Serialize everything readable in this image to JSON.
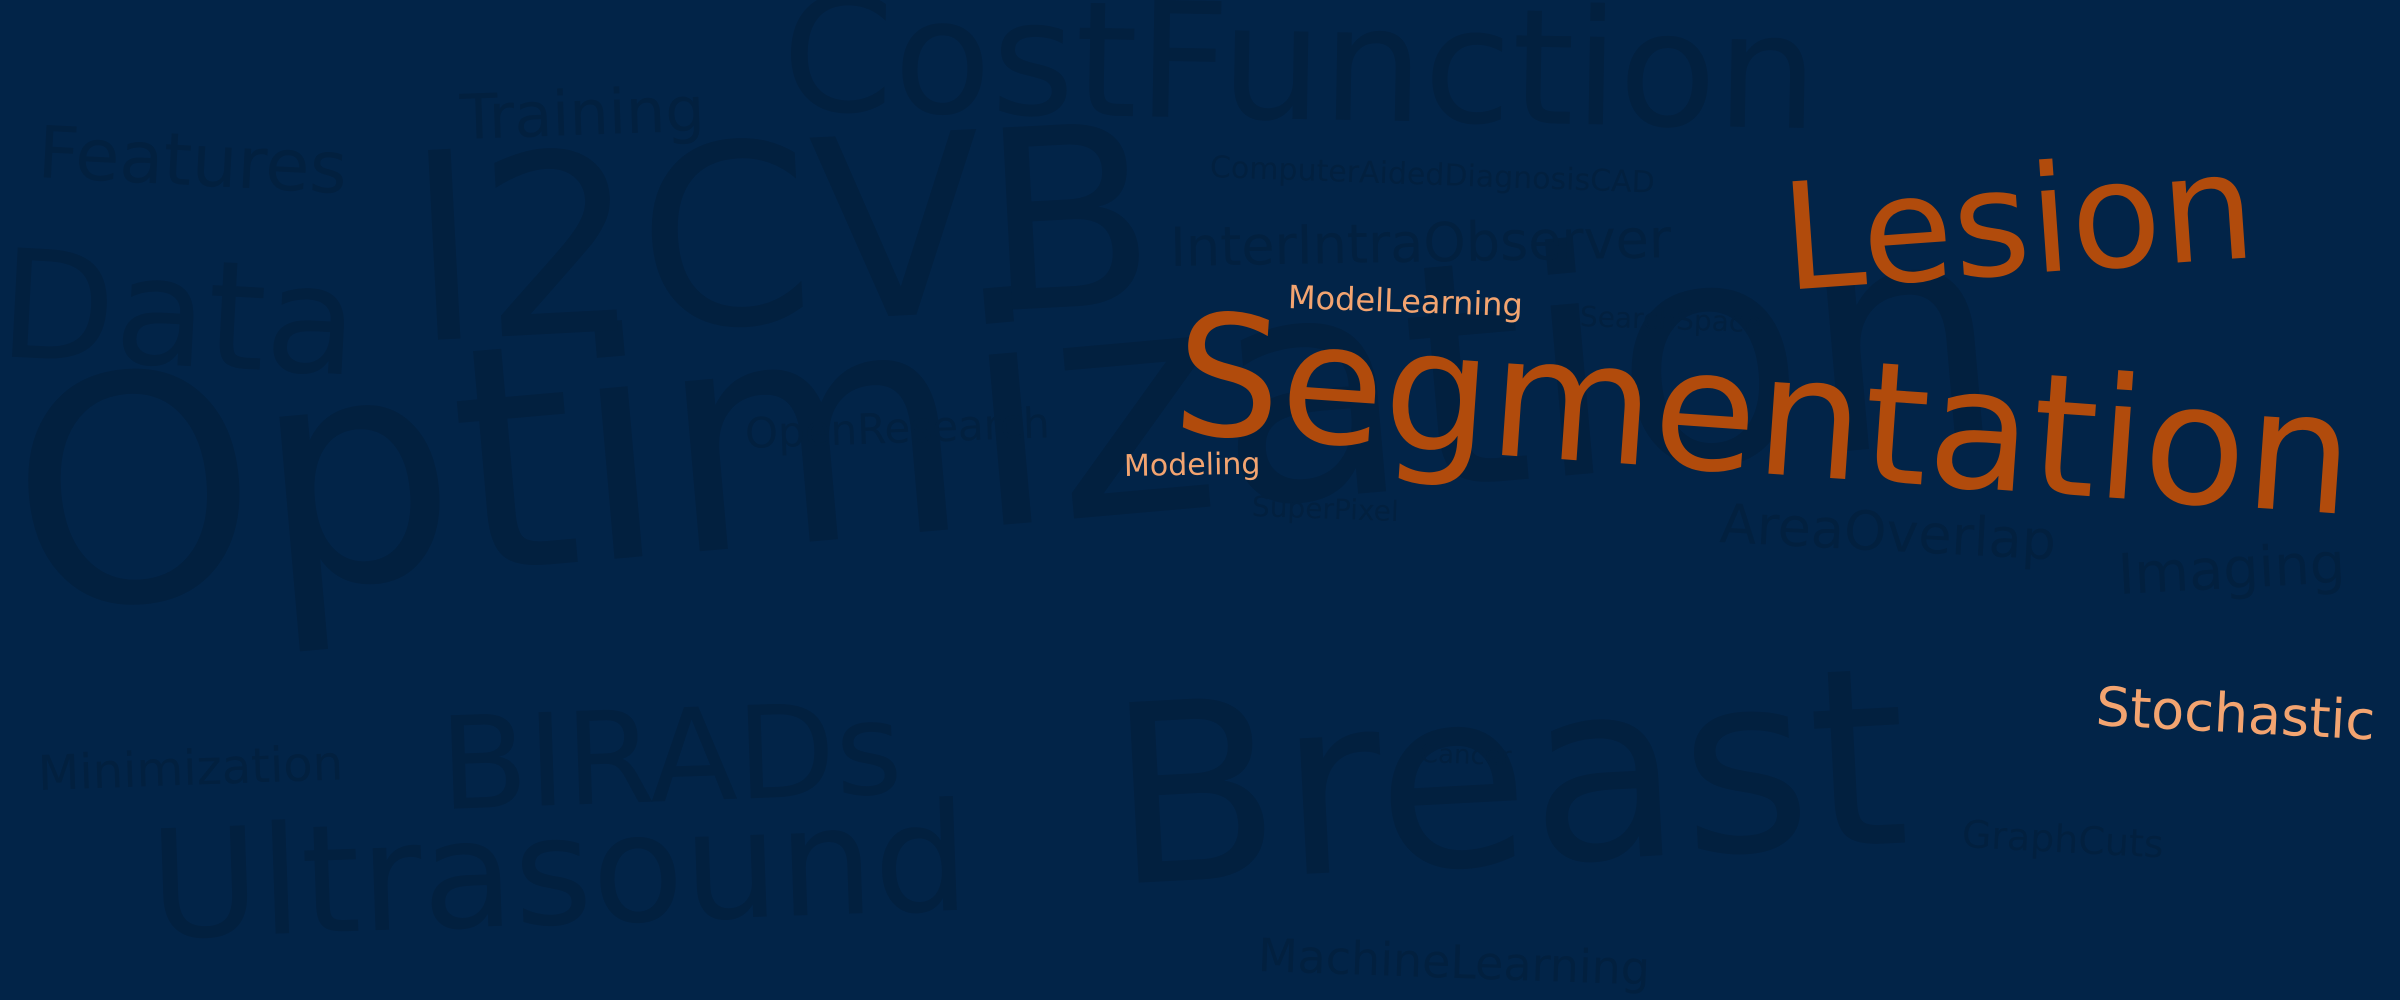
{
  "palette": {
    "background": "#022448",
    "muted_text": "#02203f",
    "accent_dark": "#b14b0c",
    "accent_light": "#f3a470"
  },
  "words": [
    {
      "text": "Optimization",
      "style": "muted"
    },
    {
      "text": "Breast",
      "style": "muted"
    },
    {
      "text": "l2CVB",
      "style": "muted"
    },
    {
      "text": "Ultrasound",
      "style": "muted"
    },
    {
      "text": "CostFunction",
      "style": "muted"
    },
    {
      "text": "Segmentation",
      "style": "accent_dark"
    },
    {
      "text": "Lesion",
      "style": "accent_dark"
    },
    {
      "text": "Data",
      "style": "muted"
    },
    {
      "text": "BIRADs",
      "style": "muted"
    },
    {
      "text": "Features",
      "style": "muted"
    },
    {
      "text": "Training",
      "style": "muted"
    },
    {
      "text": "InterIntraObserver",
      "style": "muted"
    },
    {
      "text": "AreaOverlap",
      "style": "muted"
    },
    {
      "text": "Imaging",
      "style": "muted"
    },
    {
      "text": "Stochastic",
      "style": "accent_light"
    },
    {
      "text": "Minimization",
      "style": "muted"
    },
    {
      "text": "MachineLearning",
      "style": "muted"
    },
    {
      "text": "OpenResearch",
      "style": "muted"
    },
    {
      "text": "GraphCuts",
      "style": "muted"
    },
    {
      "text": "ComputerAidedDiagnosisCAD",
      "style": "muted"
    },
    {
      "text": "ModelLearning",
      "style": "accent_light"
    },
    {
      "text": "Modeling",
      "style": "accent_light"
    },
    {
      "text": "SearchSpace",
      "style": "muted"
    },
    {
      "text": "SuperPixel",
      "style": "muted"
    },
    {
      "text": "Cancer",
      "style": "muted"
    }
  ]
}
